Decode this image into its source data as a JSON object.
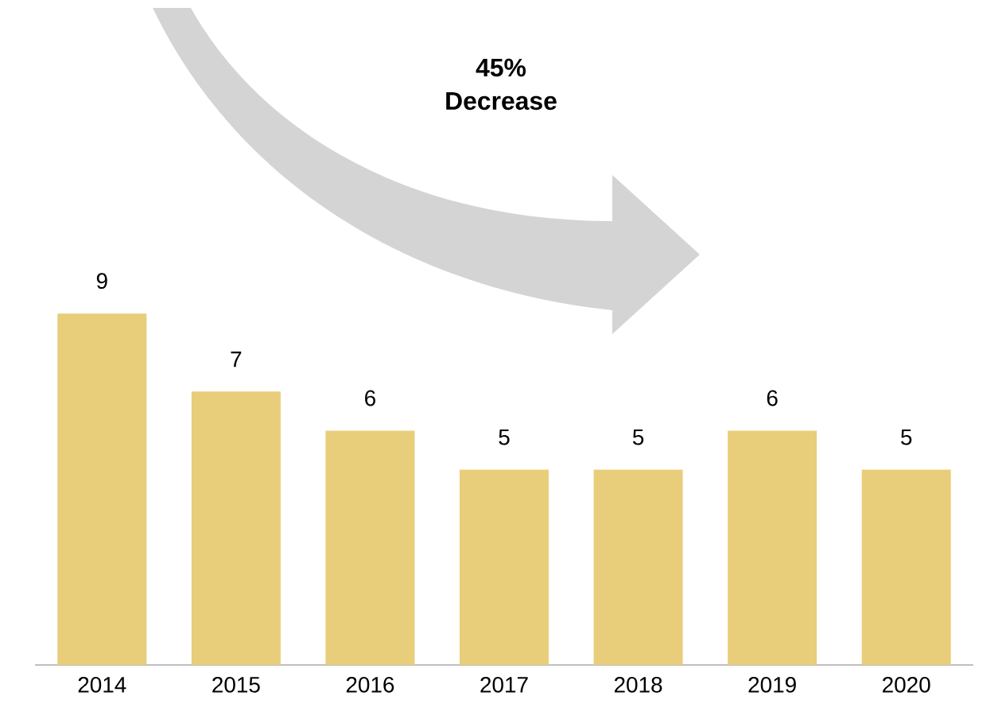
{
  "chart_data": {
    "type": "bar",
    "categories": [
      "2014",
      "2015",
      "2016",
      "2017",
      "2018",
      "2019",
      "2020"
    ],
    "values": [
      9,
      7,
      6,
      5,
      5,
      6,
      5
    ],
    "color": "#e8cd7a",
    "data_labels": true,
    "annotations": [
      "45% Decrease"
    ]
  }
}
